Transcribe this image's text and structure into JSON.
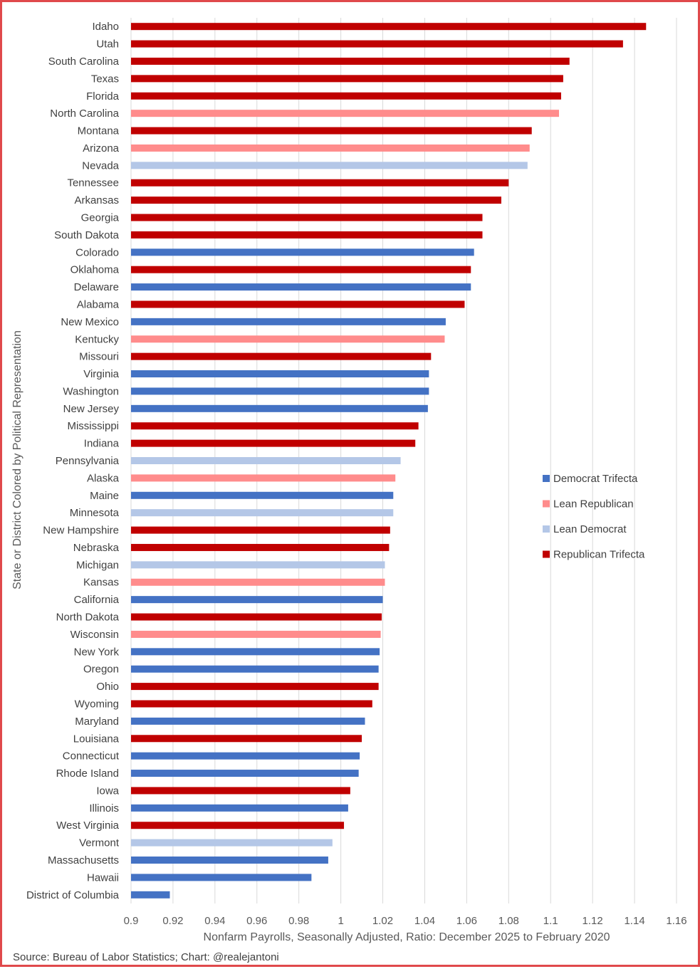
{
  "chart_data": {
    "type": "bar",
    "orientation": "horizontal",
    "xlabel": "Nonfarm Payrolls, Seasonally Adjusted, Ratio: December 2025 to February 2020",
    "ylabel": "State or District Colored by Political Representation",
    "xlim": [
      0.9,
      1.16
    ],
    "xticks": [
      "0.9",
      "0.92",
      "0.94",
      "0.96",
      "0.98",
      "1",
      "1.02",
      "1.04",
      "1.06",
      "1.08",
      "1.1",
      "1.12",
      "1.14",
      "1.16"
    ],
    "grid": true,
    "legend_position": "right",
    "legend": [
      {
        "key": "dem",
        "label": "Democrat Trifecta",
        "color": "#4472c4"
      },
      {
        "key": "lrep",
        "label": "Lean Republican",
        "color": "#ff8c8c"
      },
      {
        "key": "ldem",
        "label": "Lean Democrat",
        "color": "#b4c7e7"
      },
      {
        "key": "rep",
        "label": "Republican Trifecta",
        "color": "#c00000"
      }
    ],
    "bars": [
      {
        "label": "Idaho",
        "value": 1.1455,
        "group": "rep"
      },
      {
        "label": "Utah",
        "value": 1.1345,
        "group": "rep"
      },
      {
        "label": "South Carolina",
        "value": 1.109,
        "group": "rep"
      },
      {
        "label": "Texas",
        "value": 1.106,
        "group": "rep"
      },
      {
        "label": "Florida",
        "value": 1.105,
        "group": "rep"
      },
      {
        "label": "North Carolina",
        "value": 1.104,
        "group": "lrep"
      },
      {
        "label": "Montana",
        "value": 1.091,
        "group": "rep"
      },
      {
        "label": "Arizona",
        "value": 1.09,
        "group": "lrep"
      },
      {
        "label": "Nevada",
        "value": 1.089,
        "group": "ldem"
      },
      {
        "label": "Tennessee",
        "value": 1.08,
        "group": "rep"
      },
      {
        "label": "Arkansas",
        "value": 1.0765,
        "group": "rep"
      },
      {
        "label": "Georgia",
        "value": 1.0675,
        "group": "rep"
      },
      {
        "label": "South Dakota",
        "value": 1.0675,
        "group": "rep"
      },
      {
        "label": "Colorado",
        "value": 1.0635,
        "group": "dem"
      },
      {
        "label": "Oklahoma",
        "value": 1.062,
        "group": "rep"
      },
      {
        "label": "Delaware",
        "value": 1.062,
        "group": "dem"
      },
      {
        "label": "Alabama",
        "value": 1.059,
        "group": "rep"
      },
      {
        "label": "New Mexico",
        "value": 1.05,
        "group": "dem"
      },
      {
        "label": "Kentucky",
        "value": 1.0495,
        "group": "lrep"
      },
      {
        "label": "Missouri",
        "value": 1.043,
        "group": "rep"
      },
      {
        "label": "Virginia",
        "value": 1.042,
        "group": "dem"
      },
      {
        "label": "Washington",
        "value": 1.042,
        "group": "dem"
      },
      {
        "label": "New Jersey",
        "value": 1.0415,
        "group": "dem"
      },
      {
        "label": "Mississippi",
        "value": 1.037,
        "group": "rep"
      },
      {
        "label": "Indiana",
        "value": 1.0355,
        "group": "rep"
      },
      {
        "label": "Pennsylvania",
        "value": 1.0285,
        "group": "ldem"
      },
      {
        "label": "Alaska",
        "value": 1.026,
        "group": "lrep"
      },
      {
        "label": "Maine",
        "value": 1.025,
        "group": "dem"
      },
      {
        "label": "Minnesota",
        "value": 1.025,
        "group": "ldem"
      },
      {
        "label": "New Hampshire",
        "value": 1.0235,
        "group": "rep"
      },
      {
        "label": "Nebraska",
        "value": 1.023,
        "group": "rep"
      },
      {
        "label": "Michigan",
        "value": 1.021,
        "group": "ldem"
      },
      {
        "label": "Kansas",
        "value": 1.021,
        "group": "lrep"
      },
      {
        "label": "California",
        "value": 1.02,
        "group": "dem"
      },
      {
        "label": "North Dakota",
        "value": 1.0195,
        "group": "rep"
      },
      {
        "label": "Wisconsin",
        "value": 1.019,
        "group": "lrep"
      },
      {
        "label": "New York",
        "value": 1.0185,
        "group": "dem"
      },
      {
        "label": "Oregon",
        "value": 1.018,
        "group": "dem"
      },
      {
        "label": "Ohio",
        "value": 1.018,
        "group": "rep"
      },
      {
        "label": "Wyoming",
        "value": 1.015,
        "group": "rep"
      },
      {
        "label": "Maryland",
        "value": 1.0115,
        "group": "dem"
      },
      {
        "label": "Louisiana",
        "value": 1.01,
        "group": "rep"
      },
      {
        "label": "Connecticut",
        "value": 1.009,
        "group": "dem"
      },
      {
        "label": "Rhode Island",
        "value": 1.0085,
        "group": "dem"
      },
      {
        "label": "Iowa",
        "value": 1.0045,
        "group": "rep"
      },
      {
        "label": "Illinois",
        "value": 1.0035,
        "group": "dem"
      },
      {
        "label": "West Virginia",
        "value": 1.0015,
        "group": "rep"
      },
      {
        "label": "Vermont",
        "value": 0.996,
        "group": "ldem"
      },
      {
        "label": "Massachusetts",
        "value": 0.994,
        "group": "dem"
      },
      {
        "label": "Hawaii",
        "value": 0.986,
        "group": "dem"
      },
      {
        "label": "District of Columbia",
        "value": 0.9185,
        "group": "dem"
      }
    ]
  },
  "source": "Source: Bureau of Labor Statistics; Chart: @realejantoni"
}
